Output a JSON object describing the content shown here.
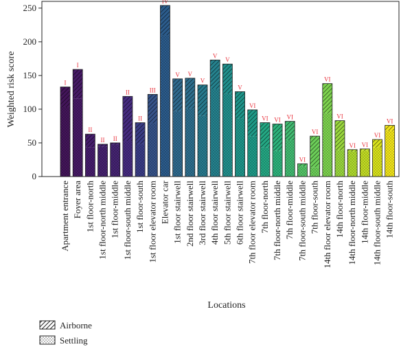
{
  "chart_data": {
    "type": "bar",
    "stacked": true,
    "title": "",
    "xlabel": "Locations",
    "ylabel": "Weighted risk score",
    "ylim": [
      0,
      260
    ],
    "yticks": [
      0,
      50,
      100,
      150,
      200,
      250
    ],
    "categories": [
      "Apartment entrance",
      "Foyer area",
      "1st floor-north",
      "1st floor-north middle",
      "1st floor-middle",
      "1st floor-south middle",
      "1st floor-south",
      "1st floor elevator room",
      "Elevator car",
      "1st floor stairwell",
      "2nd floor stairwell",
      "3rd floor stairwell",
      "4th floor stairwell",
      "5th floor stairwell",
      "6th floor stairwell",
      "7th floor elevator room",
      "7th floor-north",
      "7th floor-north middle",
      "7th floor-middle",
      "7th floor-south middle",
      "7th floor-south",
      "14th floor elevator room",
      "14th floor-north",
      "14th floor-north middle",
      "14th floor-middle",
      "14th floor-south middle",
      "14th floor-south"
    ],
    "risk_levels": [
      "I",
      "I",
      "II",
      "II",
      "II",
      "II",
      "II",
      "III",
      "IV",
      "V",
      "V",
      "V",
      "V",
      "V",
      "V",
      "VI",
      "VI",
      "VI",
      "VI",
      "VI",
      "VI",
      "VI",
      "VI",
      "VI",
      "VI",
      "VI",
      "VI"
    ],
    "series": [
      {
        "name": "Settling",
        "pattern": "dots",
        "values": [
          103,
          116,
          43,
          44,
          47,
          53,
          48,
          79,
          210,
          97,
          101,
          90,
          130,
          123,
          86,
          60,
          43,
          38,
          54,
          15,
          14,
          94,
          39,
          37,
          38,
          43,
          68
        ]
      },
      {
        "name": "Airborne",
        "pattern": "hatch",
        "values": [
          30,
          43,
          20,
          4,
          3,
          66,
          32,
          43,
          44,
          48,
          45,
          46,
          43,
          44,
          40,
          39,
          37,
          40,
          28,
          4,
          46,
          44,
          44,
          3,
          3,
          12,
          8
        ]
      }
    ],
    "bar_colors": [
      "#43155a",
      "#471a66",
      "#461d6c",
      "#45226f",
      "#452472",
      "#462b80",
      "#3a3d86",
      "#365389",
      "#2c5c8c",
      "#2f6a8e",
      "#2e6f8e",
      "#277a8e",
      "#25828e",
      "#21908d",
      "#1f968b",
      "#1e9b88",
      "#24a884",
      "#2eb37c",
      "#42bb72",
      "#54c568",
      "#6cce59",
      "#7ed34f",
      "#9ad83e",
      "#afdc2e",
      "#c4de24",
      "#d9e31c",
      "#f2e51a"
    ],
    "legend": {
      "position": "bottom-left"
    }
  }
}
